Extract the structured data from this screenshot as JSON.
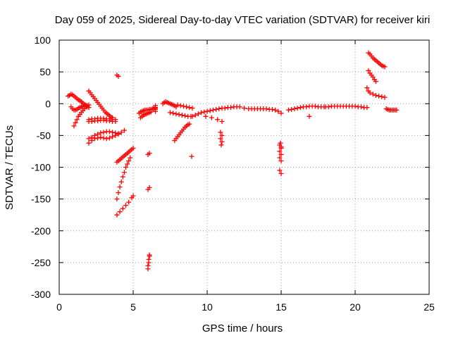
{
  "chart_data": {
    "type": "scatter",
    "title": "Day 059 of 2025, Sidereal Day-to-day VTEC variation (SDTVAR) for receiver kiri",
    "xlabel": "GPS time / hours",
    "ylabel": "SDTVAR / TECUs",
    "xlim": [
      0,
      25
    ],
    "ylim": [
      -300,
      100
    ],
    "x_ticks": [
      0,
      5,
      10,
      15,
      20,
      25
    ],
    "y_ticks": [
      -300,
      -250,
      -200,
      -150,
      -100,
      -50,
      0,
      50,
      100
    ],
    "x_tick_labels": [
      "0",
      "5",
      "10",
      "15",
      "20",
      "25"
    ],
    "y_tick_labels": [
      "-300",
      "-250",
      "-200",
      "-150",
      "-100",
      "-50",
      "0",
      "50",
      "100"
    ],
    "grid": true,
    "marker": "+",
    "color": "#ff0000",
    "series": [
      {
        "x": [
          0.6,
          0.7,
          0.8,
          0.9,
          1.0,
          1.1,
          1.2,
          1.3,
          1.4,
          1.5,
          1.6,
          1.7,
          1.8,
          1.9,
          2.0,
          0.8,
          0.9,
          1.0,
          1.1,
          1.2,
          1.3,
          1.4,
          1.5,
          1.6,
          1.7,
          1.8,
          1.9,
          1.0,
          1.1,
          1.2,
          1.3,
          1.4,
          1.5,
          1.6,
          1.7,
          1.8,
          1.9,
          2.0,
          2.0,
          2.1,
          2.2,
          2.3,
          2.4,
          2.5,
          2.6,
          2.7,
          2.8,
          2.9,
          3.0,
          3.1,
          3.2,
          3.3,
          3.4,
          3.5,
          3.6,
          2.0,
          2.2,
          2.4,
          2.6,
          2.8,
          3.0,
          3.2,
          3.4,
          3.6,
          3.8,
          2.0,
          2.2,
          2.4,
          2.6,
          2.8,
          3.0,
          3.2,
          3.4,
          3.6,
          3.8,
          2.0,
          2.2,
          2.4,
          2.6,
          2.8,
          3.0,
          3.2,
          3.4,
          3.6,
          3.8,
          4.0,
          2.0,
          2.2,
          2.4,
          2.6,
          2.8,
          3.0,
          3.2,
          3.4,
          3.6,
          3.8,
          4.0,
          4.2,
          4.4,
          3.9,
          4.0,
          3.9,
          4.0,
          4.1,
          4.2,
          4.3,
          4.4,
          4.5,
          4.6,
          4.7,
          4.8,
          4.9,
          5.0,
          3.9,
          4.0,
          4.1,
          4.2,
          4.3,
          4.4,
          4.5,
          4.6,
          4.7,
          4.8,
          3.9,
          4.1,
          4.3,
          4.5,
          4.7,
          4.9,
          5.0,
          5.4,
          5.5,
          5.6,
          5.7,
          5.8,
          5.9,
          6.0,
          6.1,
          6.2,
          6.3,
          6.4,
          6.5,
          5.5,
          5.6,
          5.7,
          5.8,
          5.9,
          6.0,
          6.1,
          6.2,
          6.0,
          6.1,
          6.0,
          6.1,
          6.0,
          6.05,
          6.1,
          6.0,
          6.05,
          6.1,
          6.5,
          6.5,
          6.5,
          6.5,
          7.0,
          7.1,
          7.2,
          7.3,
          7.4,
          7.5,
          7.6,
          7.7,
          7.8,
          7.9,
          7.5,
          7.7,
          7.9,
          8.1,
          8.3,
          8.5,
          8.7,
          8.9,
          9.0,
          7.8,
          7.9,
          8.0,
          8.1,
          8.2,
          8.3,
          8.4,
          8.5,
          8.6,
          8.7,
          8.8,
          8.0,
          8.2,
          8.4,
          8.6,
          8.8,
          9.0,
          8.95,
          9.2,
          9.4,
          9.6,
          9.8,
          10.0,
          10.2,
          10.4,
          10.6,
          10.8,
          11.0,
          11.2,
          11.4,
          11.6,
          11.8,
          12.0,
          12.2,
          9.9,
          10.3,
          10.7,
          11.0,
          10.9,
          11.0,
          10.9,
          11.0,
          10.95,
          12.5,
          12.8,
          13.0,
          13.2,
          13.4,
          13.6,
          13.8,
          14.0,
          14.2,
          14.4,
          14.6,
          14.8,
          15.0,
          14.9,
          15.0,
          14.9,
          15.0,
          14.9,
          15.0,
          14.9,
          15.0,
          14.95,
          15.0,
          15.5,
          15.7,
          15.9,
          16.1,
          16.3,
          16.5,
          16.7,
          16.9,
          17.1,
          17.3,
          17.5,
          17.7,
          17.9,
          16.9,
          18.0,
          18.2,
          18.4,
          18.6,
          18.8,
          19.0,
          19.2,
          19.4,
          19.6,
          19.8,
          20.0,
          20.2,
          20.4,
          20.6,
          20.8,
          20.9,
          21.0,
          21.1,
          21.2,
          21.3,
          21.4,
          21.5,
          21.6,
          21.7,
          21.8,
          21.9,
          22.0,
          20.9,
          21.0,
          21.1,
          21.2,
          21.3,
          21.4,
          20.8,
          20.9,
          21.0,
          21.2,
          21.4,
          21.6,
          21.8,
          22.0,
          22.1,
          22.2,
          22.3,
          22.4,
          22.5,
          22.6,
          22.7,
          22.8
        ],
        "y": [
          12,
          13,
          15,
          14,
          12,
          10,
          8,
          6,
          5,
          3,
          1,
          -1,
          -3,
          -5,
          -6,
          -5,
          -8,
          -10,
          -10,
          -9,
          -7,
          -6,
          -5,
          -4,
          -3,
          -2,
          -3,
          -35,
          -30,
          -25,
          -20,
          -17,
          -14,
          -11,
          -8,
          -5,
          -3,
          -2,
          20,
          17,
          14,
          11,
          8,
          5,
          2,
          -1,
          -4,
          -7,
          -10,
          -13,
          -15,
          -17,
          -19,
          -21,
          -22,
          -25,
          -24,
          -24,
          -23,
          -23,
          -23,
          -24,
          -24,
          -25,
          -25,
          -28,
          -28,
          -27,
          -27,
          -26,
          -26,
          -27,
          -27,
          -28,
          -28,
          -55,
          -53,
          -50,
          -48,
          -46,
          -45,
          -44,
          -44,
          -45,
          -46,
          -47,
          -62,
          -58,
          -55,
          -54,
          -53,
          -54,
          -55,
          -54,
          -52,
          -50,
          -48,
          -45,
          -42,
          45,
          43,
          -92,
          -90,
          -88,
          -86,
          -84,
          -82,
          -80,
          -78,
          -76,
          -74,
          -72,
          -70,
          -150,
          -140,
          -131,
          -123,
          -115,
          -108,
          -100,
          -95,
          -90,
          -85,
          -175,
          -170,
          -165,
          -160,
          -155,
          -148,
          -145,
          -15,
          -13,
          -12,
          -11,
          -10,
          -10,
          -10,
          -9,
          -9,
          -8,
          -8,
          -7,
          -22,
          -20,
          -18,
          -17,
          -16,
          -15,
          -14,
          -13,
          -80,
          -78,
          -135,
          -132,
          -260,
          -250,
          -240,
          -255,
          -245,
          -238,
          -3,
          -6,
          -9,
          -12,
          0,
          2,
          3,
          2,
          1,
          0,
          -1,
          -2,
          -3,
          -5,
          -14,
          -15,
          -16,
          -17,
          -18,
          -19,
          -20,
          -20,
          -20,
          -58,
          -55,
          -52,
          -49,
          -46,
          -43,
          -40,
          -37,
          -35,
          -33,
          -32,
          -2,
          -3,
          -4,
          -5,
          -6,
          -7,
          -83,
          -18,
          -16,
          -14,
          -13,
          -12,
          -11,
          -10,
          -9,
          -8,
          -7,
          -7,
          -6,
          -6,
          -5,
          -5,
          -5,
          -20,
          -22,
          -25,
          -28,
          -45,
          -50,
          -55,
          -60,
          -65,
          -7,
          -8,
          -8,
          -8,
          -8,
          -8,
          -8,
          -8,
          -9,
          -9,
          -10,
          -12,
          -15,
          -65,
          -70,
          -75,
          -80,
          -85,
          -90,
          -105,
          -110,
          -62,
          -68,
          -10,
          -9,
          -8,
          -7,
          -6,
          -5,
          -5,
          -4,
          -4,
          -4,
          -5,
          -5,
          -5,
          -20,
          -5,
          -5,
          -4,
          -4,
          -4,
          -4,
          -4,
          -4,
          -4,
          -4,
          -4,
          -5,
          -5,
          -6,
          -6,
          80,
          78,
          75,
          72,
          70,
          68,
          66,
          64,
          62,
          60,
          59,
          58,
          52,
          48,
          45,
          42,
          38,
          35,
          25,
          20,
          17,
          15,
          13,
          12,
          11,
          10,
          -8,
          -9,
          -10,
          -10,
          -10,
          -10,
          -10,
          -10
        ]
      }
    ]
  }
}
